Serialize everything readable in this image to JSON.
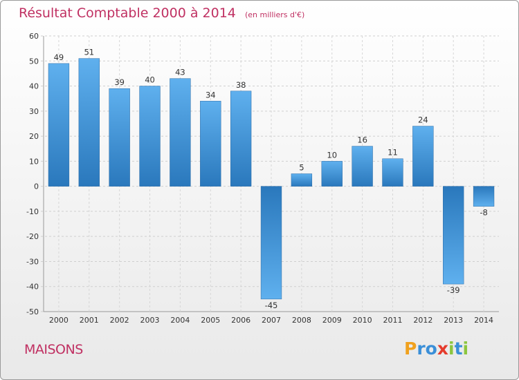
{
  "chart_data": {
    "type": "bar",
    "title": "Résultat Comptable 2000 à 2014",
    "subtitle": "(en milliers d'€)",
    "categories": [
      "2000",
      "2001",
      "2002",
      "2003",
      "2004",
      "2005",
      "2006",
      "2007",
      "2008",
      "2009",
      "2010",
      "2011",
      "2012",
      "2013",
      "2014"
    ],
    "values": [
      49,
      51,
      39,
      40,
      43,
      34,
      38,
      -45,
      5,
      10,
      16,
      11,
      24,
      -39,
      -8
    ],
    "ylim": [
      -50,
      60
    ],
    "yticks": [
      60,
      50,
      40,
      30,
      20,
      10,
      0,
      -10,
      -20,
      -30,
      -40,
      -50
    ],
    "grid": true,
    "bar_color": "#3d8ed0"
  },
  "footer": {
    "town": "MAISONS",
    "logo": [
      "P",
      "r",
      "o",
      "x",
      "i",
      "t",
      "i"
    ],
    "logo_colors": [
      "#f0a11e",
      "#3a8fd8",
      "#3a8fd8",
      "#e53b2c",
      "#8cc63f",
      "#3a8fd8",
      "#8cc63f"
    ]
  }
}
